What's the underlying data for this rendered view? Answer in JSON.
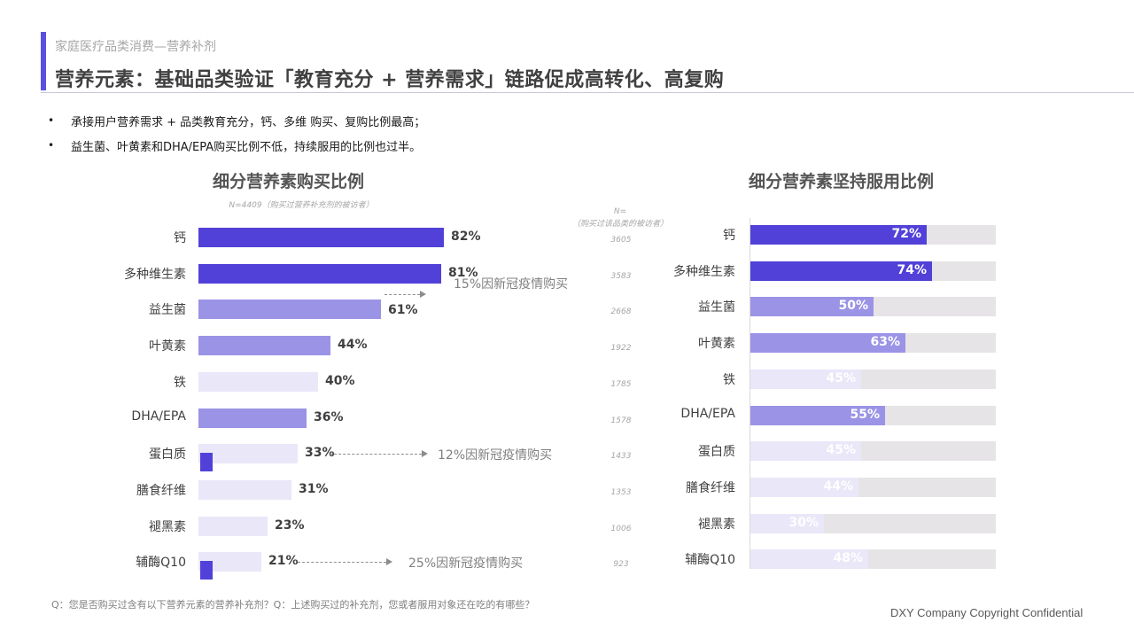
{
  "header": {
    "subtitle": "家庭医疗品类消费—营养补剂",
    "title": "营养元素：基础品类验证「教育充分 + 营养需求」链路促成高转化、高复购"
  },
  "bullets": [
    {
      "marker": "•",
      "text": "承接用户营养需求 + 品类教育充分，钙、多维 购买、复购比例最高；"
    },
    {
      "marker": "•",
      "text": "益生菌、叶黄素和DHA/EPA购买比例不低，持续服用的比例也过半。"
    }
  ],
  "colors": {
    "accent": "#5b4fe0",
    "dark_purple": "#5141d8",
    "mid_purple": "#9b93e6",
    "light_purple": "#e9e7f8",
    "track_gray": "#e6e4e6"
  },
  "left_chart": {
    "title": "细分营养素购买比例",
    "n_note": "N=4409（购买过营养补充剂的被访者）"
  },
  "n_column": {
    "header_line1": "N=",
    "header_line2": "（购买过该品类的被访者）"
  },
  "right_chart": {
    "title": "细分营养素坚持服用比例"
  },
  "annotations": [
    {
      "text": "15%因新冠疫情购买",
      "row": "益生菌"
    },
    {
      "text": "12%因新冠疫情购买",
      "row": "蛋白质"
    },
    {
      "text": "25%因新冠疫情购买",
      "row": "辅酶Q10"
    }
  ],
  "rows": [
    {
      "label": "钙",
      "purchase": "82%",
      "n": "3605",
      "persist": "72%"
    },
    {
      "label": "多种维生素",
      "purchase": "81%",
      "n": "3583",
      "persist": "74%"
    },
    {
      "label": "益生菌",
      "purchase": "61%",
      "n": "2668",
      "persist": "50%"
    },
    {
      "label": "叶黄素",
      "purchase": "44%",
      "n": "1922",
      "persist": "63%"
    },
    {
      "label": "铁",
      "purchase": "40%",
      "n": "1785",
      "persist": "45%"
    },
    {
      "label": "DHA/EPA",
      "purchase": "36%",
      "n": "1578",
      "persist": "55%"
    },
    {
      "label": "蛋白质",
      "purchase": "33%",
      "n": "1433",
      "persist": "45%"
    },
    {
      "label": "膳食纤维",
      "purchase": "31%",
      "n": "1353",
      "persist": "44%"
    },
    {
      "label": "褪黑素",
      "purchase": "23%",
      "n": "1006",
      "persist": "30%"
    },
    {
      "label": "辅酶Q10",
      "purchase": "21%",
      "n": "923",
      "persist": "48%"
    }
  ],
  "footer": {
    "question": "Q：您是否购买过含有以下营养元素的营养补充剂？Q：上述购买过的补充剂，您或者服用对象还在吃的有哪些？",
    "copyright": "DXY Company Copyright Confidential"
  },
  "chart_data": [
    {
      "type": "bar",
      "orientation": "horizontal",
      "title": "细分营养素购买比例",
      "subtitle": "N=4409（购买过营养补充剂的被访者）",
      "categories": [
        "钙",
        "多种维生素",
        "益生菌",
        "叶黄素",
        "铁",
        "DHA/EPA",
        "蛋白质",
        "膳食纤维",
        "褪黑素",
        "辅酶Q10"
      ],
      "values": [
        82,
        81,
        61,
        44,
        40,
        36,
        33,
        31,
        23,
        21
      ],
      "unit": "%",
      "sample_sizes": [
        3605,
        3583,
        2668,
        1922,
        1785,
        1578,
        1433,
        1353,
        1006,
        923
      ],
      "annotations": [
        {
          "category": "益生菌",
          "text": "15%因新冠疫情购买"
        },
        {
          "category": "蛋白质",
          "text": "12%因新冠疫情购买"
        },
        {
          "category": "辅酶Q10",
          "text": "25%因新冠疫情购买"
        }
      ],
      "xlabel": "",
      "ylabel": "",
      "xlim": [
        0,
        100
      ],
      "grid": false
    },
    {
      "type": "bar",
      "orientation": "horizontal",
      "title": "细分营养素坚持服用比例",
      "categories": [
        "钙",
        "多种维生素",
        "益生菌",
        "叶黄素",
        "铁",
        "DHA/EPA",
        "蛋白质",
        "膳食纤维",
        "褪黑素",
        "辅酶Q10"
      ],
      "values": [
        72,
        74,
        50,
        63,
        45,
        55,
        45,
        44,
        30,
        48
      ],
      "unit": "%",
      "xlabel": "",
      "ylabel": "",
      "xlim": [
        0,
        100
      ],
      "grid": false
    }
  ]
}
